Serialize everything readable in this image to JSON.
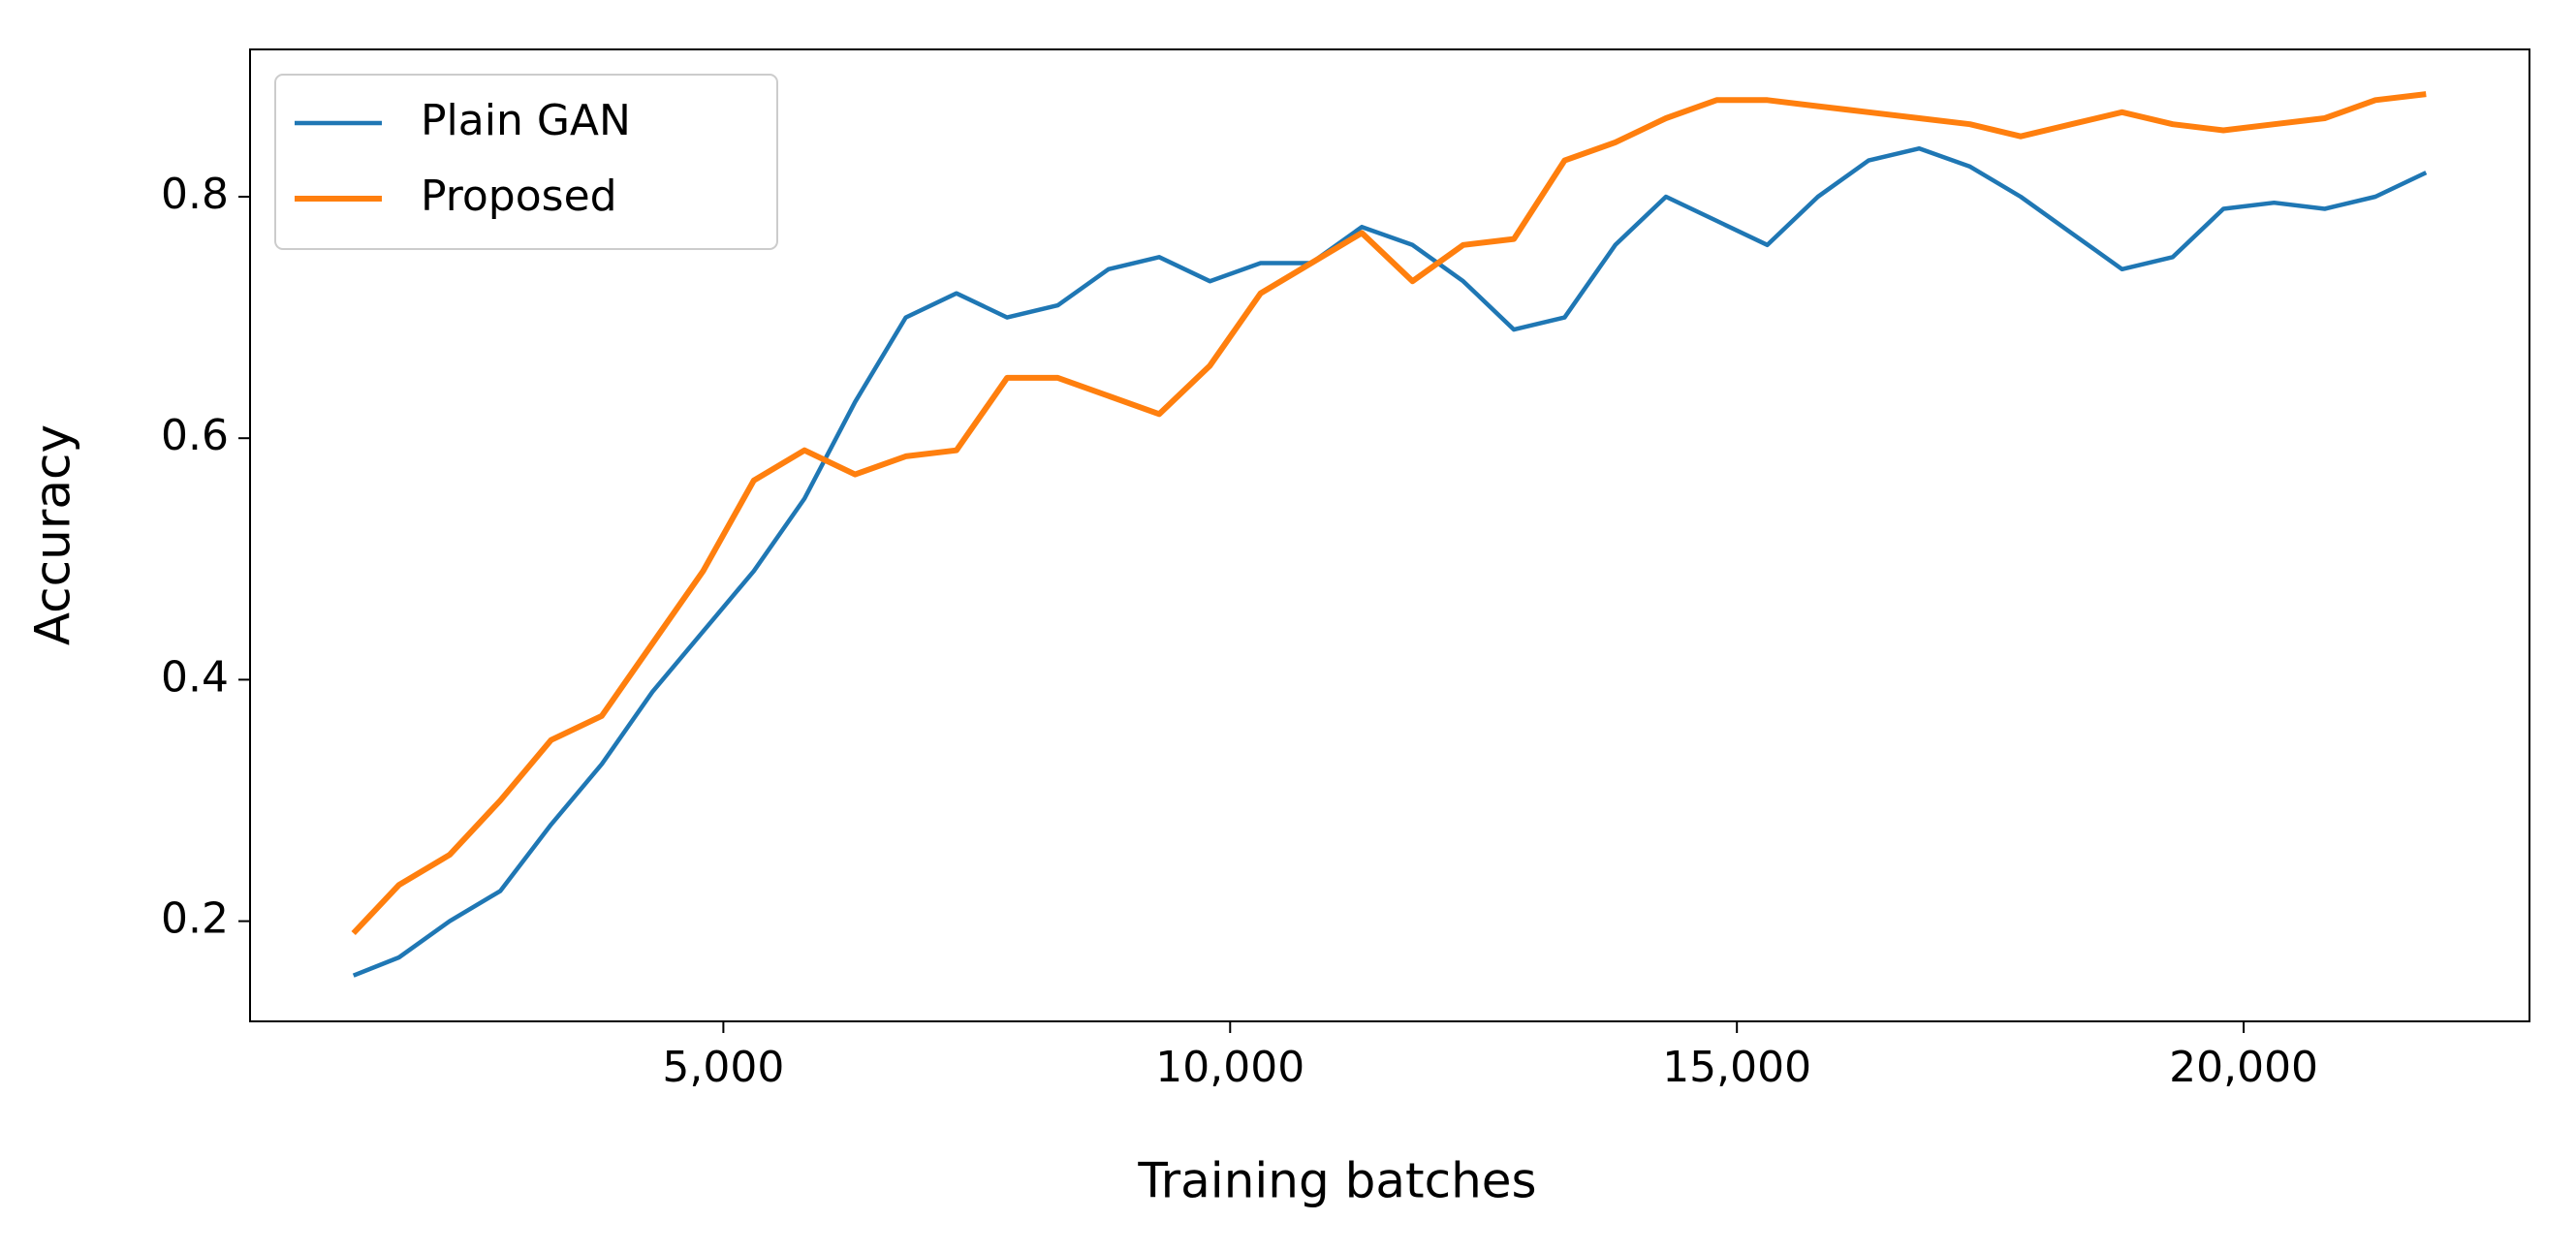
{
  "chart_data": {
    "type": "line",
    "x_label": "Training batches",
    "y_label": "Accuracy",
    "x": [
      1350,
      1800,
      2300,
      2800,
      3300,
      3800,
      4300,
      4800,
      5300,
      5800,
      6300,
      6800,
      7300,
      7800,
      8300,
      8800,
      9300,
      9800,
      10300,
      10800,
      11300,
      11800,
      12300,
      12800,
      13300,
      13800,
      14300,
      14800,
      15300,
      15800,
      16300,
      16800,
      17300,
      17800,
      18300,
      18800,
      19300,
      19800,
      20300,
      20800,
      21300,
      21800
    ],
    "series": [
      {
        "name": "Plain GAN",
        "color": "#1f77b4",
        "values": [
          0.155,
          0.17,
          0.2,
          0.225,
          0.28,
          0.33,
          0.39,
          0.44,
          0.49,
          0.55,
          0.63,
          0.7,
          0.72,
          0.7,
          0.71,
          0.74,
          0.75,
          0.73,
          0.745,
          0.745,
          0.775,
          0.76,
          0.73,
          0.69,
          0.7,
          0.76,
          0.8,
          0.78,
          0.76,
          0.8,
          0.83,
          0.84,
          0.825,
          0.8,
          0.77,
          0.74,
          0.75,
          0.79,
          0.795,
          0.79,
          0.8,
          0.82
        ]
      },
      {
        "name": "Proposed",
        "color": "#ff7f0e",
        "values": [
          0.19,
          0.23,
          0.255,
          0.3,
          0.35,
          0.37,
          0.43,
          0.49,
          0.565,
          0.59,
          0.57,
          0.585,
          0.59,
          0.65,
          0.65,
          0.635,
          0.62,
          0.66,
          0.72,
          0.745,
          0.77,
          0.73,
          0.76,
          0.765,
          0.83,
          0.845,
          0.865,
          0.88,
          0.88,
          0.875,
          0.87,
          0.865,
          0.86,
          0.85,
          0.86,
          0.87,
          0.86,
          0.855,
          0.86,
          0.865,
          0.88,
          0.885
        ]
      }
    ],
    "xlim": [
      330,
      22820
    ],
    "xticks": [
      {
        "value": 5000,
        "label": "5,000"
      },
      {
        "value": 10000,
        "label": "10,000"
      },
      {
        "value": 15000,
        "label": "15,000"
      },
      {
        "value": 20000,
        "label": "20,000"
      }
    ],
    "ylim": [
      0.117,
      0.922
    ],
    "yticks": [
      0.2,
      0.4,
      0.6,
      0.8
    ],
    "grid": false,
    "legend": "upper-left"
  }
}
